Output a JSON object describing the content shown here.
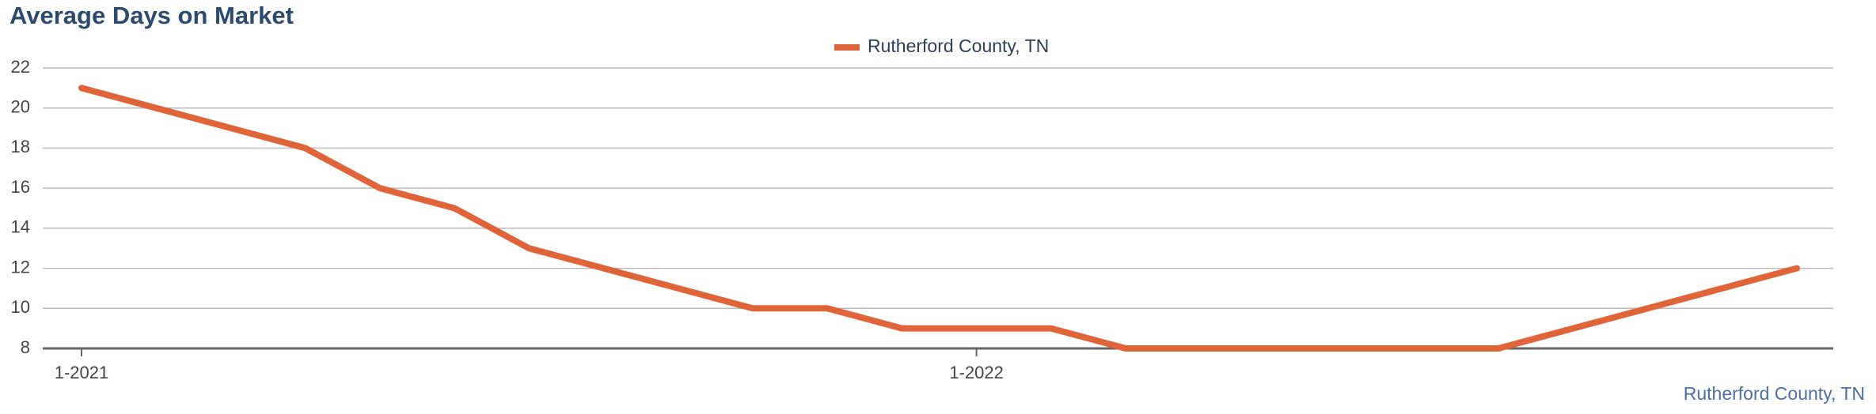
{
  "chart_data": {
    "type": "line",
    "title": "Average Days on Market",
    "categories": [
      "1-2021",
      null,
      null,
      null,
      null,
      null,
      null,
      null,
      null,
      null,
      null,
      null,
      "1-2022",
      null,
      null,
      null,
      null,
      null,
      null,
      null,
      null,
      null,
      null,
      null
    ],
    "series": [
      {
        "name": "Rutherford County, TN",
        "color": "#e0643a",
        "values": [
          21,
          20,
          19,
          18,
          16,
          15,
          13,
          12,
          11,
          10,
          10,
          9,
          9,
          9,
          8,
          8,
          8,
          8,
          8,
          8,
          9,
          10,
          11,
          12
        ]
      }
    ],
    "ylim": [
      8,
      22
    ],
    "yticks": [
      8,
      10,
      12,
      14,
      16,
      18,
      20,
      22
    ],
    "grid": true,
    "legend": "top",
    "annotation": "Rutherford County, TN"
  }
}
